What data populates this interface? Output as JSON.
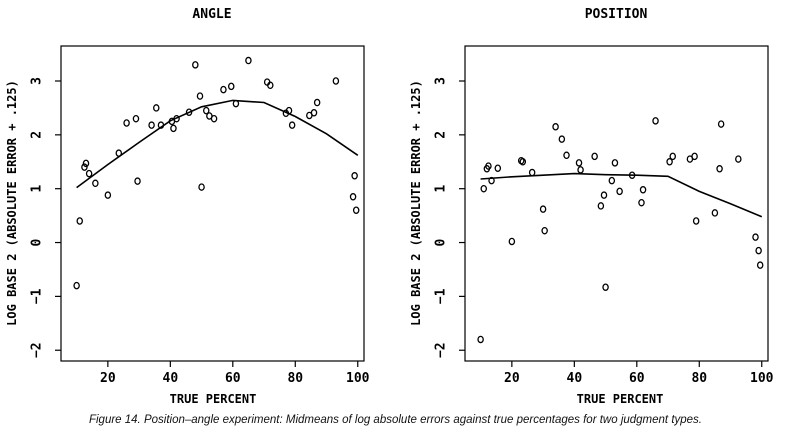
{
  "caption": "Figure 14. Position–angle experiment: Midmeans of log absolute errors against true percentages for two judgment types.",
  "chart_data": [
    {
      "type": "scatter",
      "title": "ANGLE",
      "xlabel": "TRUE PERCENT",
      "ylabel": "LOG BASE 2 (ABSOLUTE ERROR + .125)",
      "xlim": [
        5,
        102
      ],
      "ylim": [
        -2.2,
        3.65
      ],
      "xticks": [
        20,
        40,
        60,
        80,
        100
      ],
      "yticks": [
        -2,
        -1,
        0,
        1,
        2,
        3
      ],
      "points": [
        [
          10,
          -0.8
        ],
        [
          11,
          0.4
        ],
        [
          12.5,
          1.4
        ],
        [
          13,
          1.47
        ],
        [
          14,
          1.28
        ],
        [
          16,
          1.1
        ],
        [
          20,
          0.88
        ],
        [
          23.5,
          1.66
        ],
        [
          26,
          2.22
        ],
        [
          29,
          2.3
        ],
        [
          29.5,
          1.14
        ],
        [
          34,
          2.18
        ],
        [
          35.5,
          2.5
        ],
        [
          37,
          2.18
        ],
        [
          40.5,
          2.25
        ],
        [
          41,
          2.12
        ],
        [
          42,
          2.3
        ],
        [
          46,
          2.42
        ],
        [
          48,
          3.3
        ],
        [
          49.5,
          2.72
        ],
        [
          50,
          1.03
        ],
        [
          51.5,
          2.45
        ],
        [
          52.5,
          2.35
        ],
        [
          54,
          2.3
        ],
        [
          57,
          2.84
        ],
        [
          59.5,
          2.9
        ],
        [
          61,
          2.58
        ],
        [
          65,
          3.38
        ],
        [
          71,
          2.98
        ],
        [
          72,
          2.92
        ],
        [
          77,
          2.4
        ],
        [
          78,
          2.45
        ],
        [
          79,
          2.18
        ],
        [
          84.5,
          2.36
        ],
        [
          86,
          2.41
        ],
        [
          87,
          2.6
        ],
        [
          93,
          3.0
        ],
        [
          98.5,
          0.85
        ],
        [
          99,
          1.24
        ],
        [
          99.5,
          0.6
        ]
      ],
      "fit_line": [
        [
          10,
          1.02
        ],
        [
          20,
          1.45
        ],
        [
          30,
          1.86
        ],
        [
          40,
          2.26
        ],
        [
          50,
          2.52
        ],
        [
          60,
          2.64
        ],
        [
          70,
          2.6
        ],
        [
          80,
          2.34
        ],
        [
          90,
          2.02
        ],
        [
          100,
          1.62
        ]
      ]
    },
    {
      "type": "scatter",
      "title": "POSITION",
      "xlabel": "TRUE PERCENT",
      "ylabel": "LOG BASE 2 (ABSOLUTE ERROR + .125)",
      "xlim": [
        5,
        102
      ],
      "ylim": [
        -2.2,
        3.65
      ],
      "xticks": [
        20,
        40,
        60,
        80,
        100
      ],
      "yticks": [
        -2,
        -1,
        0,
        1,
        2,
        3
      ],
      "points": [
        [
          10,
          -1.8
        ],
        [
          11,
          1.0
        ],
        [
          12,
          1.37
        ],
        [
          12.5,
          1.42
        ],
        [
          13.5,
          1.15
        ],
        [
          15.5,
          1.38
        ],
        [
          20,
          0.02
        ],
        [
          23,
          1.52
        ],
        [
          23.5,
          1.5
        ],
        [
          26.5,
          1.3
        ],
        [
          30,
          0.62
        ],
        [
          30.5,
          0.22
        ],
        [
          34,
          2.15
        ],
        [
          36,
          1.92
        ],
        [
          37.5,
          1.62
        ],
        [
          41.5,
          1.48
        ],
        [
          42,
          1.35
        ],
        [
          46.5,
          1.6
        ],
        [
          48.5,
          0.68
        ],
        [
          49.5,
          0.88
        ],
        [
          50,
          -0.83
        ],
        [
          52,
          1.15
        ],
        [
          53,
          1.48
        ],
        [
          54.5,
          0.95
        ],
        [
          58.5,
          1.25
        ],
        [
          61.5,
          0.74
        ],
        [
          62,
          0.98
        ],
        [
          66,
          2.26
        ],
        [
          70.5,
          1.5
        ],
        [
          71.5,
          1.6
        ],
        [
          77,
          1.55
        ],
        [
          78.5,
          1.6
        ],
        [
          79,
          0.4
        ],
        [
          85,
          0.55
        ],
        [
          86.5,
          1.37
        ],
        [
          87,
          2.2
        ],
        [
          92.5,
          1.55
        ],
        [
          98,
          0.1
        ],
        [
          99,
          -0.15
        ],
        [
          99.5,
          -0.42
        ]
      ],
      "fit_line": [
        [
          10,
          1.18
        ],
        [
          20,
          1.22
        ],
        [
          30,
          1.25
        ],
        [
          40,
          1.28
        ],
        [
          50,
          1.26
        ],
        [
          60,
          1.25
        ],
        [
          70,
          1.23
        ],
        [
          80,
          0.95
        ],
        [
          90,
          0.72
        ],
        [
          100,
          0.48
        ]
      ]
    }
  ]
}
